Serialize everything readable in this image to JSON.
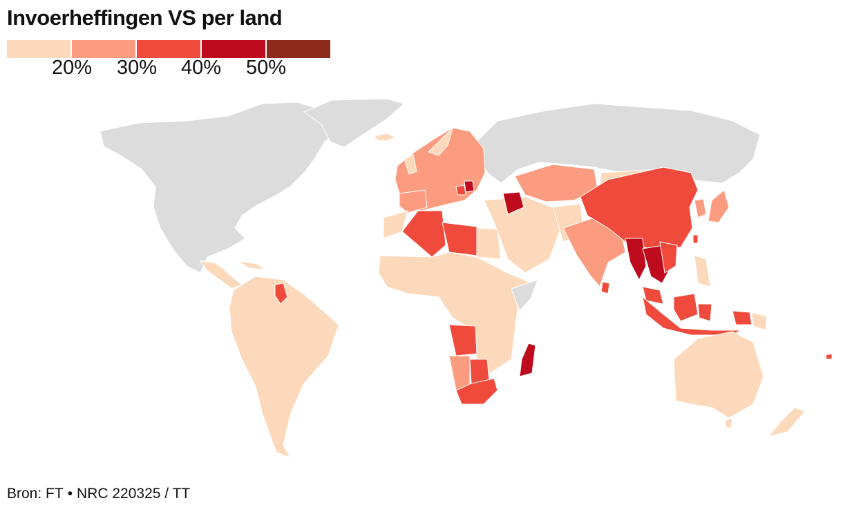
{
  "title": "Invoerheffingen VS per land",
  "legend": {
    "colors": [
      "#fcd9bb",
      "#fb9c80",
      "#ef4a3c",
      "#bd0a1c",
      "#8c2a1c"
    ],
    "ticks": [
      "20%",
      "30%",
      "40%",
      "50%"
    ]
  },
  "colors": {
    "no_data": "#dcdcdc",
    "border": "#ffffff"
  },
  "source": {
    "text": "Bron: FT",
    "separator": "•",
    "credit": "NRC 220325 / TT"
  }
}
